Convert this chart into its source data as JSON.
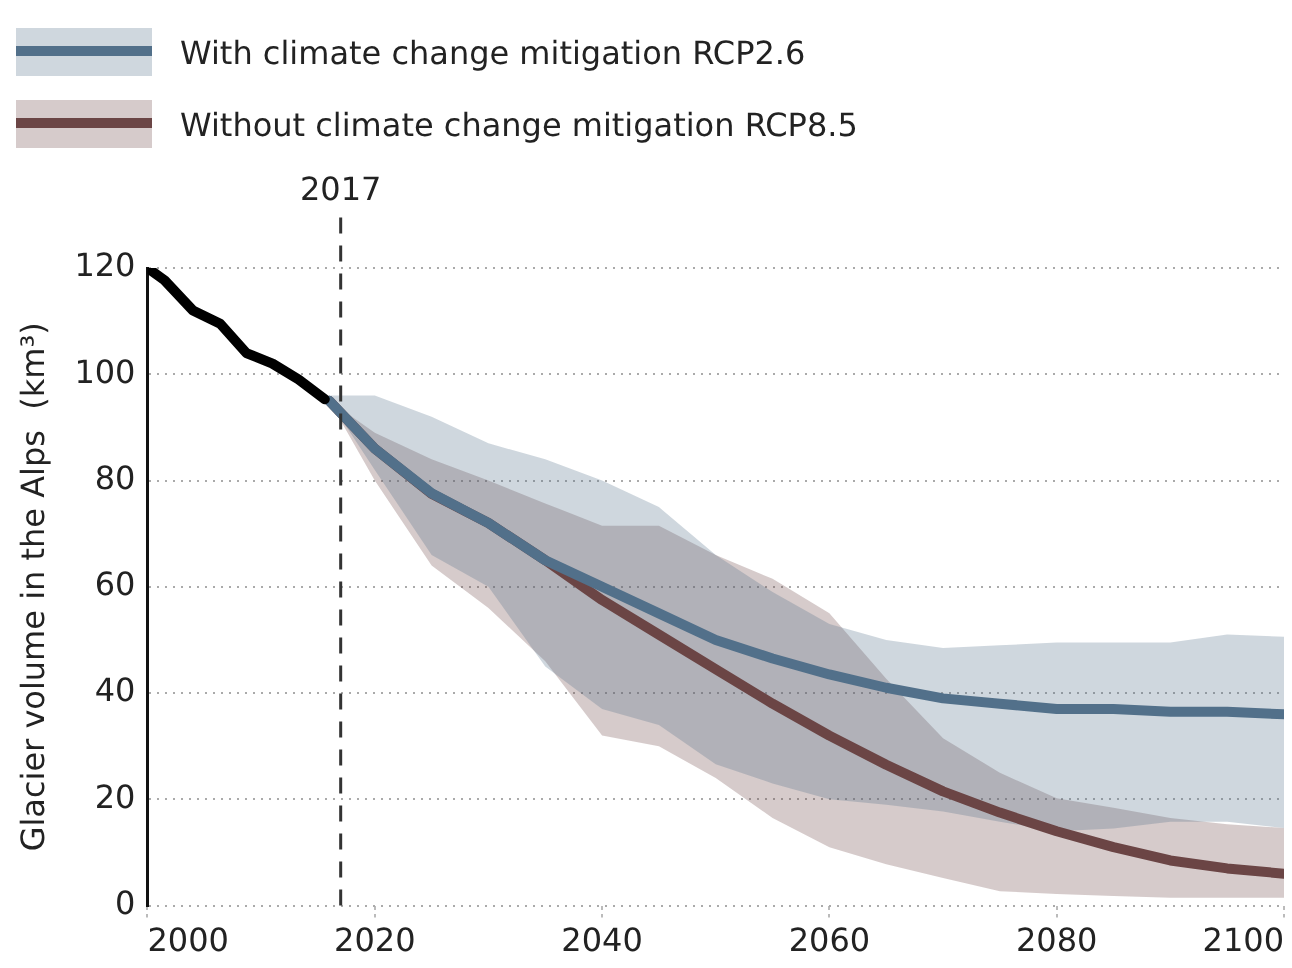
{
  "chart_data": {
    "type": "line",
    "ylabel": "Glacier volume in the Alps  (km³)",
    "xlim": [
      2000,
      2100
    ],
    "xticks": [
      2000,
      2020,
      2040,
      2060,
      2080,
      2100
    ],
    "ylim": [
      0,
      120
    ],
    "yticks": [
      0,
      20,
      40,
      60,
      80,
      100,
      120
    ],
    "grid": "y",
    "legend": "top left",
    "marker": "none",
    "line_style": "solid",
    "series": [
      {
        "color": "#000000",
        "x": [
          2000,
          2001.5,
          2004,
          2006.4,
          2008.7,
          2011,
          2013.3,
          2015.6
        ],
        "values": [
          120,
          117.7,
          112,
          109.5,
          104,
          102,
          99,
          95.3
        ]
      },
      {
        "name": "With climate change mitigation RCP2.6",
        "color": "#52708a",
        "x": [
          2016,
          2020,
          2025,
          2030,
          2035,
          2040,
          2045,
          2050,
          2055,
          2060,
          2065,
          2070,
          2075,
          2080,
          2085,
          2090,
          2095,
          2100
        ],
        "values": [
          95,
          86,
          77.6,
          72,
          65,
          60,
          55,
          50,
          46.5,
          43.5,
          41,
          39,
          38,
          37,
          37,
          36.5,
          36.5,
          36
        ],
        "lower": [
          95,
          82,
          66,
          60,
          45,
          37,
          34,
          26.6,
          23,
          20,
          19,
          17.7,
          15.8,
          14,
          14.5,
          15.8,
          15.8,
          14.6
        ],
        "upper": [
          96,
          96,
          92,
          87,
          84,
          80,
          75,
          66,
          59,
          53,
          50,
          48.5,
          49,
          49.5,
          49.5,
          49.5,
          51,
          50.6
        ]
      },
      {
        "name": "Without climate change mitigation RCP8.5",
        "color": "#6b4545",
        "x": [
          2016,
          2020,
          2025,
          2030,
          2035,
          2040,
          2045,
          2050,
          2055,
          2060,
          2065,
          2070,
          2075,
          2080,
          2085,
          2090,
          2095,
          2100
        ],
        "values": [
          95,
          86,
          77.5,
          72,
          65,
          57.5,
          51,
          44.5,
          38,
          32,
          26.5,
          21.5,
          17.5,
          14,
          11,
          8.5,
          7,
          6
        ],
        "lower": [
          95,
          80,
          64,
          56,
          46,
          32,
          30,
          24,
          16.5,
          11,
          7.8,
          5.2,
          2.7,
          2.2,
          1.8,
          1.5,
          1.5,
          1.5
        ],
        "upper": [
          95,
          89,
          84,
          80,
          75.7,
          71.5,
          71.5,
          66,
          61.5,
          55,
          42.7,
          31.5,
          25,
          20.2,
          18.4,
          16.5,
          15.3,
          14.6
        ]
      }
    ],
    "ref_lines": [
      {
        "axis": "x",
        "value": 2017,
        "label": "2017",
        "color": "#333333",
        "line_style": "dashed"
      }
    ]
  }
}
